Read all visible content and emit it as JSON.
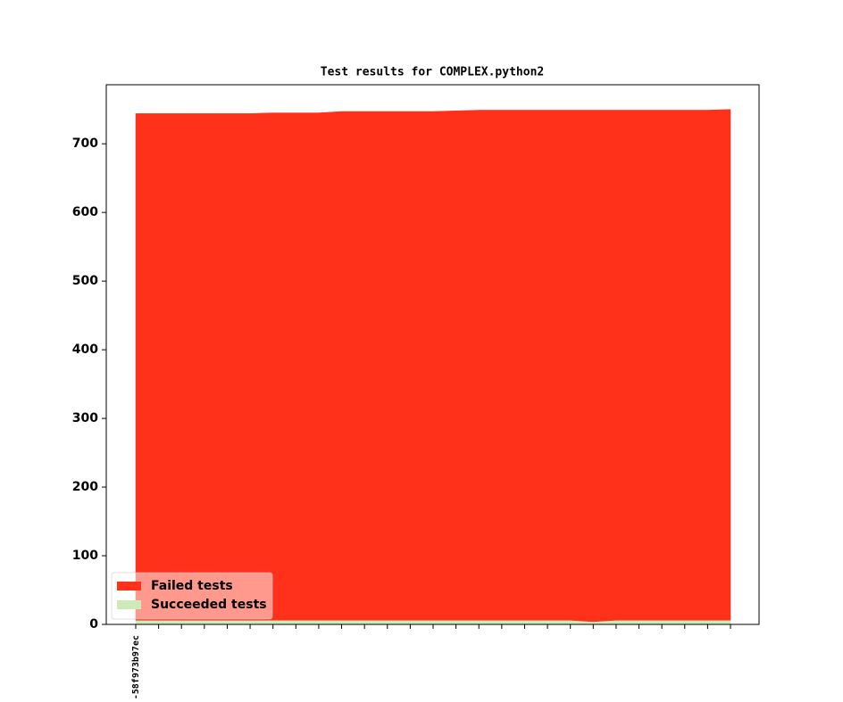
{
  "chart_data": {
    "type": "stacked-area",
    "title": "Test results for COMPLEX.python2",
    "categories": [
      "-58f973b97ec",
      null,
      null,
      null,
      null,
      null,
      null,
      null,
      null,
      null,
      null,
      null,
      null,
      null,
      null,
      null,
      null,
      null,
      null,
      null,
      null,
      null,
      null,
      null,
      null,
      null,
      null
    ],
    "series": [
      {
        "name": "Failed tests",
        "color": "#ff311b",
        "values": [
          738,
          738,
          738,
          738,
          738,
          738,
          739,
          739,
          739,
          741,
          741,
          741,
          741,
          741,
          742,
          743,
          743,
          743,
          743,
          743,
          745,
          743,
          743,
          743,
          743,
          743,
          744
        ]
      },
      {
        "name": "Succeeded tests",
        "color": "#cdeab8",
        "values": [
          6,
          6,
          6,
          6,
          6,
          6,
          6,
          6,
          6,
          6,
          6,
          6,
          6,
          6,
          6,
          6,
          6,
          6,
          6,
          6,
          4,
          6,
          6,
          6,
          6,
          6,
          6
        ]
      }
    ],
    "ylim": [
      0,
      786
    ],
    "yticks": [
      0,
      100,
      200,
      300,
      400,
      500,
      600,
      700
    ],
    "legend": "lower left"
  }
}
